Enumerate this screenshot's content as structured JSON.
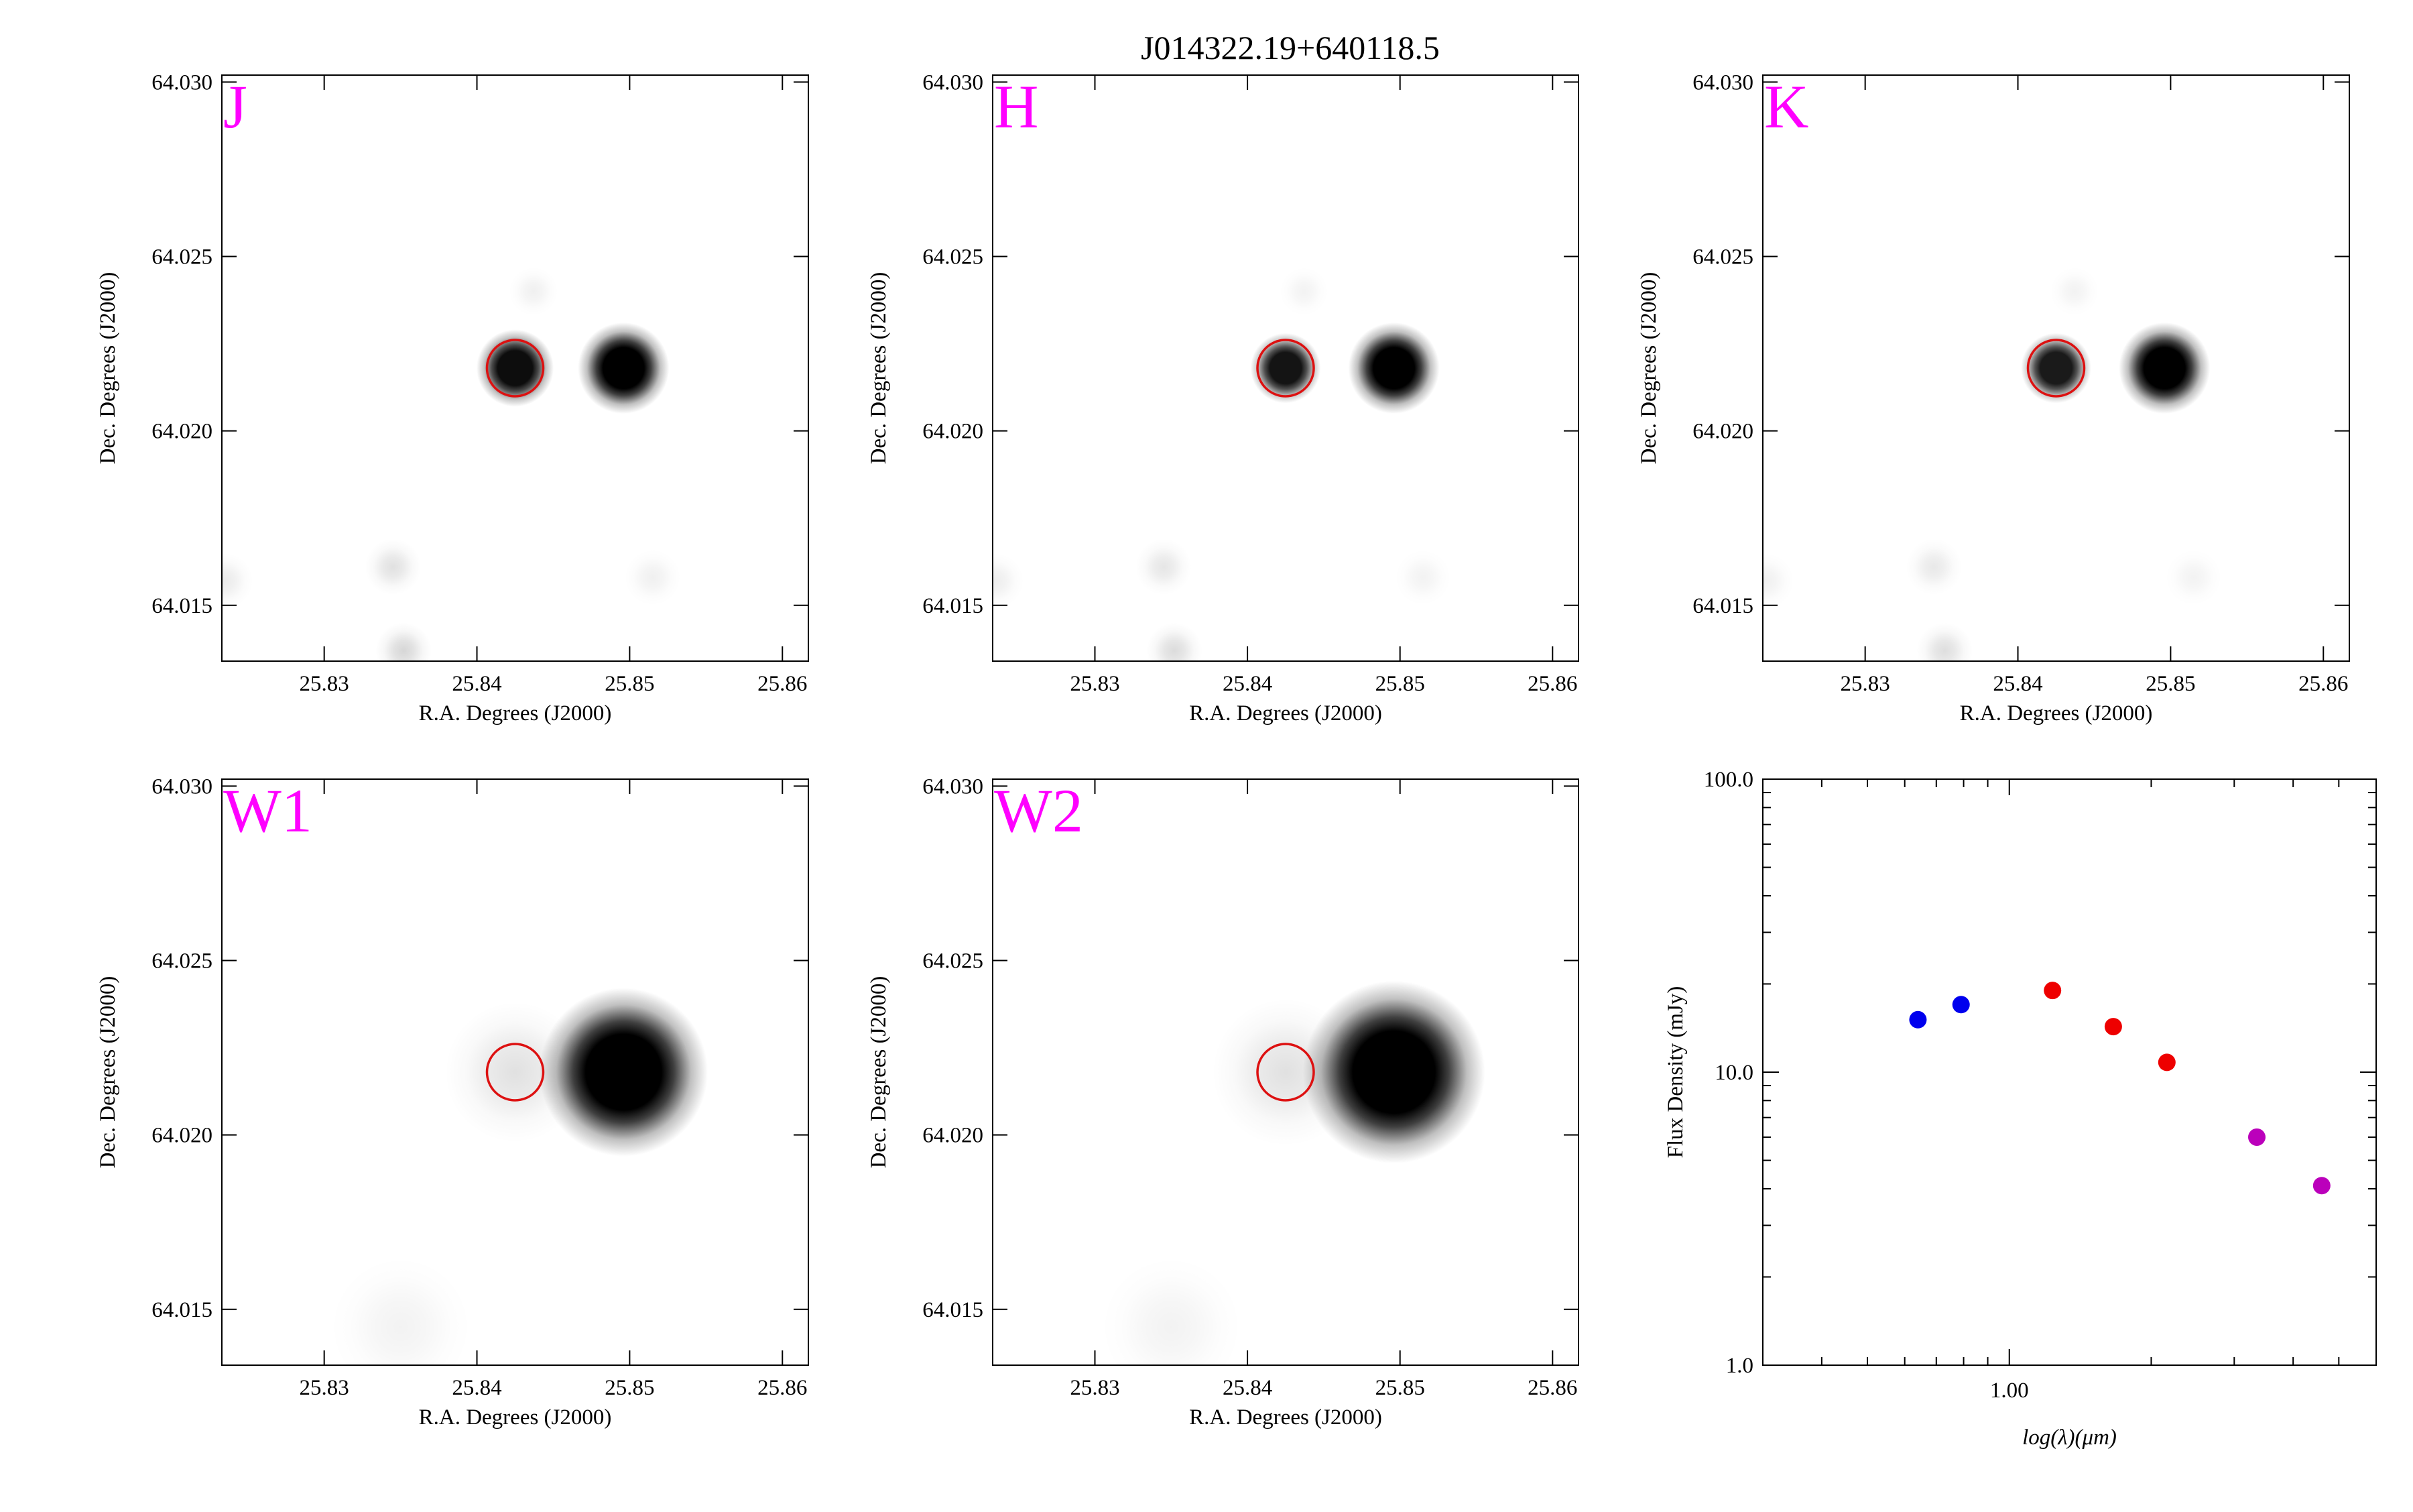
{
  "figure_title": "J014322.19+640118.5",
  "chart_data": [
    {
      "type": "image",
      "band": "J",
      "xlabel": "R.A. Degrees (J2000)",
      "ylabel": "Dec. Degrees (J2000)",
      "xlim": [
        25.8233,
        25.8617
      ],
      "ylim": [
        64.0134,
        64.0302
      ],
      "x_ticks": [
        "25.83",
        "25.84",
        "25.85",
        "25.86"
      ],
      "y_ticks": [
        "64.015",
        "64.020",
        "64.025",
        "64.030"
      ],
      "target_marker": {
        "ra": 25.8425,
        "dec": 64.0218,
        "color": "#dd1111"
      },
      "sources": [
        {
          "ra": 25.8425,
          "dec": 64.0218,
          "brightness": 0.95,
          "sigma_deg": 0.0011
        },
        {
          "ra": 25.8496,
          "dec": 64.0218,
          "brightness": 1.0,
          "sigma_deg": 0.0013
        },
        {
          "ra": 25.8345,
          "dec": 64.0161,
          "brightness": 0.12,
          "sigma_deg": 0.0008
        },
        {
          "ra": 25.8352,
          "dec": 64.0137,
          "brightness": 0.16,
          "sigma_deg": 0.0008
        },
        {
          "ra": 25.8235,
          "dec": 64.0157,
          "brightness": 0.08,
          "sigma_deg": 0.0008
        },
        {
          "ra": 25.8515,
          "dec": 64.0158,
          "brightness": 0.06,
          "sigma_deg": 0.0008
        },
        {
          "ra": 25.8437,
          "dec": 64.024,
          "brightness": 0.06,
          "sigma_deg": 0.0007
        }
      ]
    },
    {
      "type": "image",
      "band": "H",
      "xlabel": "R.A. Degrees (J2000)",
      "ylabel": "Dec. Degrees (J2000)",
      "xlim": [
        25.8233,
        25.8617
      ],
      "ylim": [
        64.0134,
        64.0302
      ],
      "x_ticks": [
        "25.83",
        "25.84",
        "25.85",
        "25.86"
      ],
      "y_ticks": [
        "64.015",
        "64.020",
        "64.025",
        "64.030"
      ],
      "target_marker": {
        "ra": 25.8425,
        "dec": 64.0218,
        "color": "#dd1111"
      },
      "sources": [
        {
          "ra": 25.8425,
          "dec": 64.0218,
          "brightness": 0.92,
          "sigma_deg": 0.001
        },
        {
          "ra": 25.8496,
          "dec": 64.0218,
          "brightness": 1.0,
          "sigma_deg": 0.0013
        },
        {
          "ra": 25.8345,
          "dec": 64.0161,
          "brightness": 0.1,
          "sigma_deg": 0.0008
        },
        {
          "ra": 25.8352,
          "dec": 64.0137,
          "brightness": 0.14,
          "sigma_deg": 0.0008
        },
        {
          "ra": 25.8235,
          "dec": 64.0157,
          "brightness": 0.07,
          "sigma_deg": 0.0008
        },
        {
          "ra": 25.8515,
          "dec": 64.0158,
          "brightness": 0.05,
          "sigma_deg": 0.0008
        },
        {
          "ra": 25.8437,
          "dec": 64.024,
          "brightness": 0.05,
          "sigma_deg": 0.0007
        }
      ]
    },
    {
      "type": "image",
      "band": "K",
      "xlabel": "R.A. Degrees (J2000)",
      "ylabel": "Dec. Degrees (J2000)",
      "xlim": [
        25.8233,
        25.8617
      ],
      "ylim": [
        64.0134,
        64.0302
      ],
      "x_ticks": [
        "25.83",
        "25.84",
        "25.85",
        "25.86"
      ],
      "y_ticks": [
        "64.015",
        "64.020",
        "64.025",
        "64.030"
      ],
      "target_marker": {
        "ra": 25.8425,
        "dec": 64.0218,
        "color": "#dd1111"
      },
      "sources": [
        {
          "ra": 25.8425,
          "dec": 64.0218,
          "brightness": 0.9,
          "sigma_deg": 0.001
        },
        {
          "ra": 25.8496,
          "dec": 64.0218,
          "brightness": 1.0,
          "sigma_deg": 0.0013
        },
        {
          "ra": 25.8345,
          "dec": 64.0161,
          "brightness": 0.09,
          "sigma_deg": 0.0008
        },
        {
          "ra": 25.8352,
          "dec": 64.0137,
          "brightness": 0.13,
          "sigma_deg": 0.0008
        },
        {
          "ra": 25.8235,
          "dec": 64.0157,
          "brightness": 0.06,
          "sigma_deg": 0.0008
        },
        {
          "ra": 25.8515,
          "dec": 64.0158,
          "brightness": 0.05,
          "sigma_deg": 0.0008
        },
        {
          "ra": 25.8437,
          "dec": 64.024,
          "brightness": 0.05,
          "sigma_deg": 0.0007
        }
      ]
    },
    {
      "type": "image",
      "band": "W1",
      "xlabel": "R.A. Degrees (J2000)",
      "ylabel": "Dec. Degrees (J2000)",
      "xlim": [
        25.8233,
        25.8617
      ],
      "ylim": [
        64.0134,
        64.0302
      ],
      "x_ticks": [
        "25.83",
        "25.84",
        "25.85",
        "25.86"
      ],
      "y_ticks": [
        "64.015",
        "64.020",
        "64.025",
        "64.030"
      ],
      "target_marker": {
        "ra": 25.8425,
        "dec": 64.0218,
        "color": "#dd1111"
      },
      "sources": [
        {
          "ra": 25.8496,
          "dec": 64.0218,
          "brightness": 1.0,
          "sigma_deg": 0.0024
        },
        {
          "ra": 25.8425,
          "dec": 64.0218,
          "brightness": 0.12,
          "sigma_deg": 0.002
        },
        {
          "ra": 25.835,
          "dec": 64.0145,
          "brightness": 0.05,
          "sigma_deg": 0.002
        }
      ]
    },
    {
      "type": "image",
      "band": "W2",
      "xlabel": "R.A. Degrees (J2000)",
      "ylabel": "Dec. Degrees (J2000)",
      "xlim": [
        25.8233,
        25.8617
      ],
      "ylim": [
        64.0134,
        64.0302
      ],
      "x_ticks": [
        "25.83",
        "25.84",
        "25.85",
        "25.86"
      ],
      "y_ticks": [
        "64.015",
        "64.020",
        "64.025",
        "64.030"
      ],
      "target_marker": {
        "ra": 25.8425,
        "dec": 64.0218,
        "color": "#dd1111"
      },
      "sources": [
        {
          "ra": 25.8496,
          "dec": 64.0218,
          "brightness": 1.0,
          "sigma_deg": 0.0026
        },
        {
          "ra": 25.8425,
          "dec": 64.0218,
          "brightness": 0.12,
          "sigma_deg": 0.0021
        },
        {
          "ra": 25.835,
          "dec": 64.0145,
          "brightness": 0.05,
          "sigma_deg": 0.002
        }
      ]
    },
    {
      "type": "scatter",
      "xlabel": "log(λ)(μm)",
      "ylabel": "Flux Density (mJy)",
      "x_scale": "log",
      "y_scale": "log",
      "xlim": [
        0.3,
        6.0
      ],
      "ylim": [
        1.0,
        100.0
      ],
      "x_ticks": [
        "1.00"
      ],
      "y_ticks": [
        "1.0",
        "10.0",
        "100.0"
      ],
      "grid": false,
      "series": [
        {
          "color": "#0000ee",
          "x": [
            0.64,
            0.79
          ],
          "y": [
            15.1,
            17.0
          ]
        },
        {
          "color": "#ee0000",
          "x": [
            1.235,
            1.662,
            2.159
          ],
          "y": [
            19.0,
            14.3,
            10.8
          ]
        },
        {
          "color": "#bb00bb",
          "x": [
            3.35,
            4.6
          ],
          "y": [
            6.0,
            4.1
          ]
        }
      ]
    }
  ]
}
